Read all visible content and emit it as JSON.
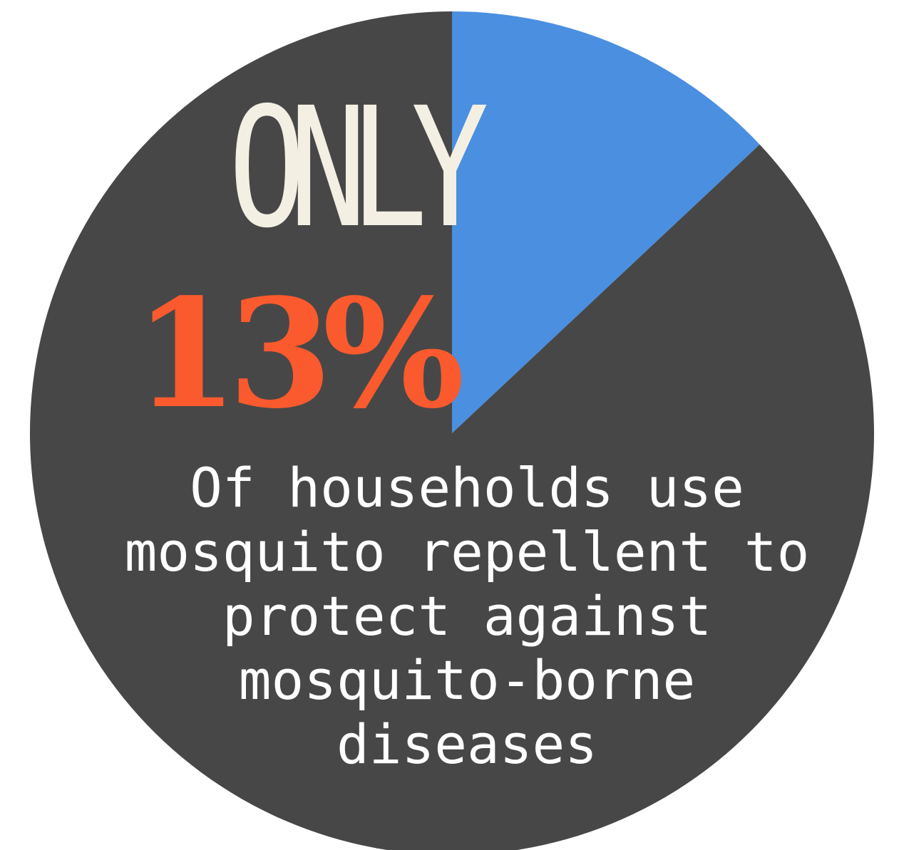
{
  "chart_data": {
    "type": "pie",
    "slices": [
      {
        "value": 13,
        "color": "#4a8fe0"
      },
      {
        "value": 87,
        "color": "#474747"
      }
    ],
    "start_angle_deg": 0,
    "direction": "clockwise"
  },
  "headline": "ONLY",
  "percent_label": "13%",
  "caption": "Of households use mosquito repellent to protect against mosquito-borne diseases",
  "colors": {
    "headline": "#f3efe3",
    "percent": "#fa5a2d",
    "caption": "#ffffff"
  }
}
